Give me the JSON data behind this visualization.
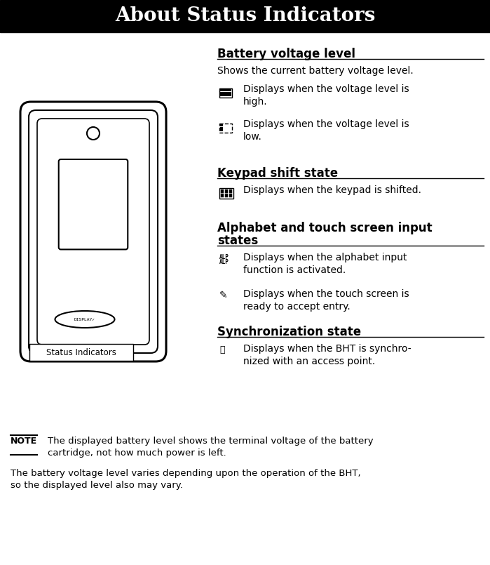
{
  "title": "About Status Indicators",
  "title_bg": "#000000",
  "title_color": "#ffffff",
  "title_fontsize": 20,
  "body_bg": "#ffffff",
  "section1_heading": "Battery voltage level",
  "section1_intro": "Shows the current battery voltage level.",
  "section2_heading": "Keypad shift state",
  "section3_heading1": "Alphabet and touch screen input",
  "section3_heading2": "states",
  "section4_heading": "Synchronization state",
  "note_text1": "The displayed battery level shows the terminal voltage of the battery\ncartridge, not how much power is left.",
  "note_text2": "The battery voltage level varies depending upon the operation of the BHT,\nso the displayed level also may vary.",
  "label_status": "Status Indicators",
  "fig_width": 6.99,
  "fig_height": 8.05,
  "dpi": 100
}
